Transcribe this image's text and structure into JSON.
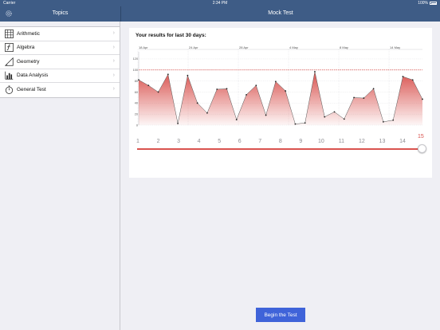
{
  "status_bar": {
    "carrier": "Carrier",
    "time": "2:34 PM",
    "battery": "100%"
  },
  "nav": {
    "left_title": "Topics",
    "right_title": "Mock Test"
  },
  "sidebar": {
    "items": [
      {
        "label": "Arithmetic",
        "icon": "calculator-icon"
      },
      {
        "label": "Algebra",
        "icon": "function-icon"
      },
      {
        "label": "Geometry",
        "icon": "triangle-icon"
      },
      {
        "label": "Data Analysis",
        "icon": "bar-chart-icon"
      },
      {
        "label": "General Test",
        "icon": "stopwatch-icon"
      }
    ]
  },
  "results": {
    "title": "Your results for last 30 days:",
    "accent_color": "#d9534f"
  },
  "chart_data": {
    "type": "area",
    "x_date_labels": [
      "18 Apr",
      "24 Apr",
      "28 Apr",
      "4 May",
      "8 May",
      "14 May"
    ],
    "yticks": [
      0,
      20,
      40,
      60,
      80,
      100,
      120
    ],
    "ylim": [
      0,
      130
    ],
    "threshold": 100,
    "values": [
      82,
      72,
      60,
      92,
      3,
      90,
      40,
      22,
      65,
      66,
      10,
      55,
      72,
      18,
      79,
      62,
      2,
      4,
      97,
      15,
      24,
      11,
      50,
      49,
      66,
      6,
      9,
      88,
      82,
      47
    ],
    "grid": true
  },
  "slider": {
    "ticks": [
      "1",
      "2",
      "3",
      "4",
      "5",
      "6",
      "7",
      "8",
      "9",
      "10",
      "11",
      "12",
      "13",
      "14"
    ],
    "max_label": "15",
    "value": 15
  },
  "actions": {
    "begin": "Begin the Test"
  }
}
